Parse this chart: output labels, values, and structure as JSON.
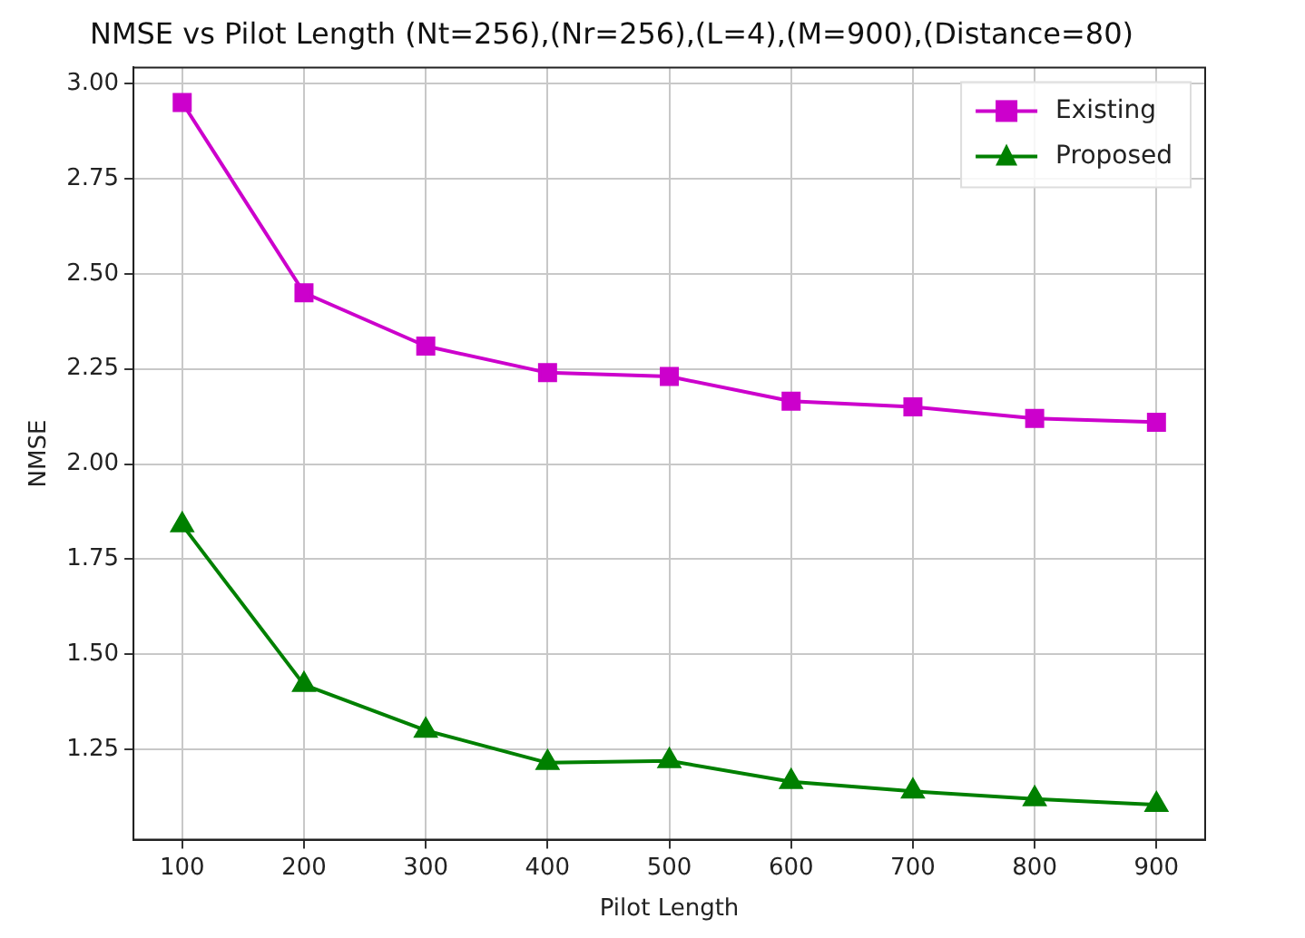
{
  "chart_data": {
    "type": "line",
    "title": "NMSE vs Pilot Length (Nt=256),(Nr=256),(L=4),(M=900),(Distance=80)",
    "xlabel": "Pilot Length",
    "ylabel": "NMSE",
    "x": [
      100,
      200,
      300,
      400,
      500,
      600,
      700,
      800,
      900
    ],
    "series": [
      {
        "name": "Existing",
        "color": "#cc00cc",
        "marker": "square",
        "values": [
          2.95,
          2.45,
          2.31,
          2.24,
          2.23,
          2.165,
          2.15,
          2.12,
          2.11
        ]
      },
      {
        "name": "Proposed",
        "color": "#008000",
        "marker": "triangle",
        "values": [
          1.84,
          1.42,
          1.3,
          1.215,
          1.22,
          1.165,
          1.14,
          1.12,
          1.105
        ]
      }
    ],
    "xlim": [
      60,
      940
    ],
    "xticks": [
      100,
      200,
      300,
      400,
      500,
      600,
      700,
      800,
      900
    ],
    "ylim": [
      1.013,
      3.042
    ],
    "yticks": [
      {
        "value": 1.25,
        "label": "1.25"
      },
      {
        "value": 1.5,
        "label": "1.50"
      },
      {
        "value": 1.75,
        "label": "1.75"
      },
      {
        "value": 2,
        "label": "2.00"
      },
      {
        "value": 2.25,
        "label": "2.25"
      },
      {
        "value": 2.5,
        "label": "2.50"
      },
      {
        "value": 2.75,
        "label": "2.75"
      },
      {
        "value": 3,
        "label": "3.00"
      }
    ],
    "grid": true,
    "legend": "top right",
    "line_style": "solid"
  }
}
